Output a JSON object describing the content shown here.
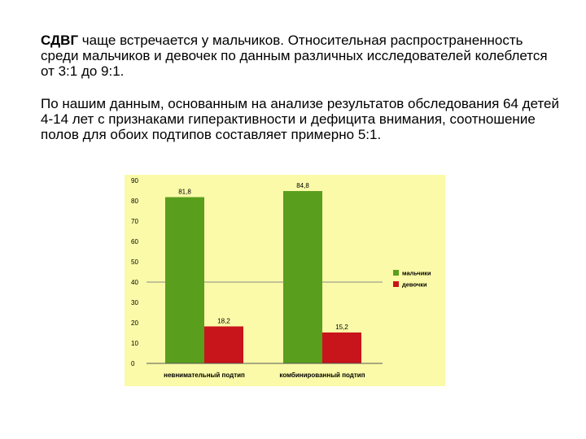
{
  "text": {
    "p1_bold": "СДВГ",
    "p1_rest": " чаще встречается у мальчиков. Относительная распространенность среди мальчиков и девочек по данным различных исследователей колеблется от 3:1 до 9:1.",
    "p2": "По нашим данным, основанным на анализе результатов обследования 64 детей 4-14 лет с признаками гиперактивности и дефицита внимания, соотношение полов для обоих подтипов составляет примерно 5:1."
  },
  "chart_data": {
    "type": "bar",
    "title": "",
    "xlabel": "",
    "ylabel": "",
    "categories": [
      "невнимательный подтип",
      "комбинированный подтип"
    ],
    "series": [
      {
        "name": "мальчики",
        "values": [
          81.8,
          84.8
        ],
        "labels": [
          "81,8",
          "84,8"
        ],
        "color": "#5a9e1e"
      },
      {
        "name": "девочки",
        "values": [
          18.2,
          15.2
        ],
        "labels": [
          "18,2",
          "15,2"
        ],
        "color": "#c8141b"
      }
    ],
    "yticks": [
      "0",
      "10",
      "20",
      "30",
      "40",
      "50",
      "60",
      "70",
      "80",
      "90"
    ],
    "ylim": [
      0,
      90
    ],
    "grid": false,
    "legend": "right",
    "plot_background": "#fafaa8",
    "reference_line": 40
  }
}
